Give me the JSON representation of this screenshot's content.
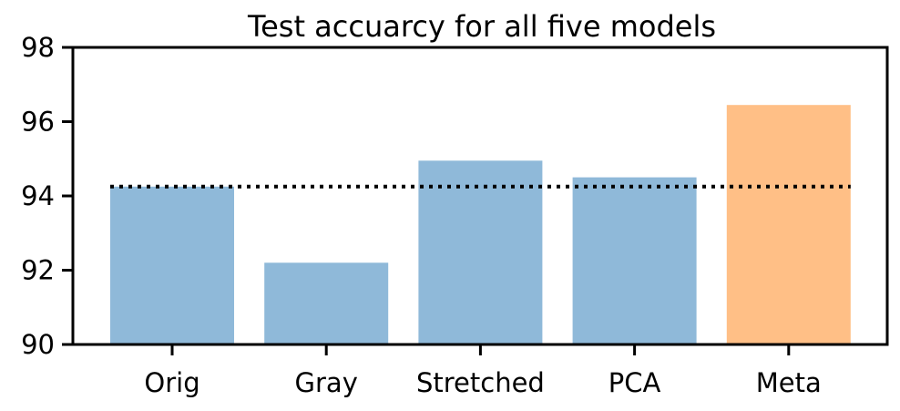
{
  "chart_data": {
    "type": "bar",
    "title": "Test accuarcy for all five models",
    "xlabel": "",
    "ylabel": "",
    "categories": [
      "Orig",
      "Gray",
      "Stretched",
      "PCA",
      "Meta"
    ],
    "values": [
      94.25,
      92.2,
      94.95,
      94.5,
      96.45
    ],
    "bar_colors": [
      "#8fb9d9",
      "#8fb9d9",
      "#8fb9d9",
      "#8fb9d9",
      "#ffbf86"
    ],
    "ylim": [
      90,
      98
    ],
    "yticks": [
      "90",
      "92",
      "94",
      "96",
      "98"
    ],
    "reference_line": {
      "value": 94.25,
      "style": "dotted",
      "color": "#000000"
    },
    "grid": false,
    "legend": "none"
  }
}
